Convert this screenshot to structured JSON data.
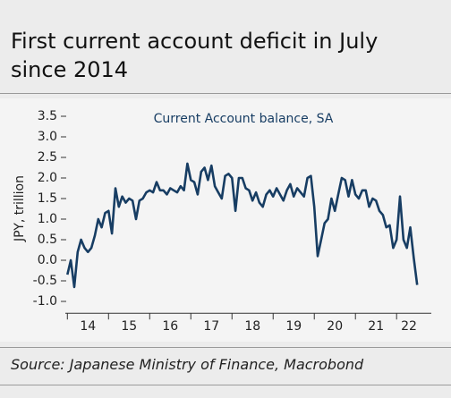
{
  "chart_data": {
    "type": "line",
    "title": "First current account deficit in July since 2014",
    "subtitle": "Current Account balance, SA",
    "y_label": "JPY, trillion",
    "source": "Source: Japanese Ministry of Finance, Macrobond",
    "ylim": [
      -1.2,
      3.6
    ],
    "yticks": [
      3.5,
      {
        "value": 3,
        "label": "3.0"
      },
      2.5,
      {
        "value": 2,
        "label": "2.0"
      },
      1.5,
      {
        "value": 1,
        "label": "1.0"
      },
      0.5,
      {
        "value": 0,
        "label": "0.0"
      },
      -0.5,
      {
        "value": -1,
        "label": "-1.0"
      }
    ],
    "xlim": [
      2013.95,
      2022.8
    ],
    "xticks": [
      {
        "value": 2014.5,
        "label": "14"
      },
      {
        "value": 2015.5,
        "label": "15"
      },
      {
        "value": 2016.5,
        "label": "16"
      },
      {
        "value": 2017.5,
        "label": "17"
      },
      {
        "value": 2018.5,
        "label": "18"
      },
      {
        "value": 2019.5,
        "label": "19"
      },
      {
        "value": 2020.5,
        "label": "20"
      },
      {
        "value": 2021.5,
        "label": "21"
      },
      {
        "value": 2022.3,
        "label": "22"
      }
    ],
    "xtick_marks": [
      2014,
      2015,
      2016,
      2017,
      2018,
      2019,
      2020,
      2021,
      2022
    ],
    "x": [
      2014,
      2014.083,
      2014.167,
      2014.25,
      2014.333,
      2014.417,
      2014.5,
      2014.583,
      2014.667,
      2014.75,
      2014.833,
      2014.917,
      2015,
      2015.083,
      2015.167,
      2015.25,
      2015.333,
      2015.417,
      2015.5,
      2015.583,
      2015.667,
      2015.75,
      2015.833,
      2015.917,
      2016,
      2016.083,
      2016.167,
      2016.25,
      2016.333,
      2016.417,
      2016.5,
      2016.583,
      2016.667,
      2016.75,
      2016.833,
      2016.917,
      2017,
      2017.083,
      2017.167,
      2017.25,
      2017.333,
      2017.417,
      2017.5,
      2017.583,
      2017.667,
      2017.75,
      2017.833,
      2017.917,
      2018,
      2018.083,
      2018.167,
      2018.25,
      2018.333,
      2018.417,
      2018.5,
      2018.583,
      2018.667,
      2018.75,
      2018.833,
      2018.917,
      2019,
      2019.083,
      2019.167,
      2019.25,
      2019.333,
      2019.417,
      2019.5,
      2019.583,
      2019.667,
      2019.75,
      2019.833,
      2019.917,
      2020,
      2020.083,
      2020.167,
      2020.25,
      2020.333,
      2020.417,
      2020.5,
      2020.583,
      2020.667,
      2020.75,
      2020.833,
      2020.917,
      2021,
      2021.083,
      2021.167,
      2021.25,
      2021.333,
      2021.417,
      2021.5,
      2021.583,
      2021.667,
      2021.75,
      2021.833,
      2021.917,
      2022,
      2022.083,
      2022.167,
      2022.25,
      2022.333,
      2022.417,
      2022.5
    ],
    "series": [
      {
        "name": "Current Account balance, SA",
        "color": "#173d63",
        "values": [
          -0.35,
          0.0,
          -0.65,
          0.2,
          0.5,
          0.3,
          0.2,
          0.3,
          0.6,
          1.0,
          0.8,
          1.15,
          1.2,
          0.65,
          1.75,
          1.3,
          1.55,
          1.4,
          1.5,
          1.45,
          1.0,
          1.45,
          1.5,
          1.65,
          1.7,
          1.65,
          1.9,
          1.7,
          1.7,
          1.6,
          1.75,
          1.7,
          1.65,
          1.8,
          1.7,
          2.35,
          1.95,
          1.9,
          1.6,
          2.15,
          2.25,
          1.95,
          2.3,
          1.8,
          1.65,
          1.5,
          2.05,
          2.1,
          2.0,
          1.2,
          2.0,
          2.0,
          1.75,
          1.7,
          1.45,
          1.65,
          1.4,
          1.3,
          1.6,
          1.7,
          1.55,
          1.75,
          1.6,
          1.45,
          1.7,
          1.85,
          1.55,
          1.75,
          1.65,
          1.55,
          2.0,
          2.05,
          1.3,
          0.1,
          0.5,
          0.9,
          1.0,
          1.5,
          1.2,
          1.6,
          2.0,
          1.95,
          1.55,
          1.95,
          1.6,
          1.5,
          1.7,
          1.7,
          1.3,
          1.5,
          1.45,
          1.2,
          1.1,
          0.8,
          0.85,
          0.3,
          0.5,
          1.55,
          0.5,
          0.3,
          0.8,
          0.05,
          -0.6
        ]
      }
    ]
  }
}
